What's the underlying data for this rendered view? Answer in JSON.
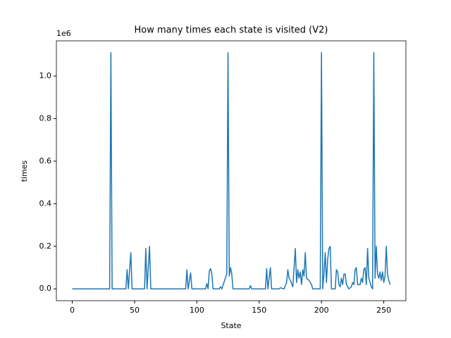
{
  "chart_data": {
    "type": "line",
    "title": "How many times each state is visited (V2)",
    "x_label": "State",
    "y_label": "times",
    "y_offset_label": "1e6",
    "color": "#1f77b4",
    "x": [
      0,
      30,
      31,
      32,
      43,
      44,
      45,
      47,
      48,
      58,
      59,
      60,
      62,
      63,
      91,
      92,
      93,
      95,
      96,
      107,
      108,
      109,
      110,
      111,
      112,
      113,
      118,
      119,
      120,
      124,
      125,
      126,
      127,
      128,
      129,
      142,
      143,
      144,
      155,
      156,
      157,
      159,
      160,
      166,
      167,
      170,
      172,
      173,
      174,
      175,
      177,
      178,
      179,
      180,
      181,
      182,
      183,
      184,
      185,
      186,
      187,
      188,
      190,
      192,
      193,
      199,
      200,
      201,
      202,
      203,
      204,
      205,
      206,
      207,
      208,
      211,
      212,
      213,
      214,
      215,
      216,
      217,
      218,
      219,
      220,
      222,
      224,
      225,
      226,
      227,
      228,
      229,
      230,
      231,
      232,
      233,
      234,
      235,
      236,
      237,
      238,
      239,
      240,
      241,
      242,
      243,
      244,
      245,
      246,
      247,
      248,
      249,
      250,
      251,
      252,
      253,
      254,
      255
    ],
    "values": [
      0,
      0,
      1.11,
      0,
      0,
      0.09,
      0,
      0.17,
      0,
      0,
      0.19,
      0,
      0.2,
      0,
      0,
      0.09,
      0,
      0.075,
      0,
      0,
      0.025,
      0,
      0.085,
      0.095,
      0.07,
      0,
      0,
      0.01,
      0,
      0.07,
      1.11,
      0.06,
      0.1,
      0.07,
      0,
      0,
      0.015,
      0,
      0,
      0.095,
      0,
      0.1,
      0,
      0,
      0.005,
      0,
      0.03,
      0.09,
      0.05,
      0.04,
      0.01,
      0.1,
      0.19,
      0.03,
      0.09,
      0.05,
      0.08,
      0.02,
      0.09,
      0.06,
      0.17,
      0.05,
      0.04,
      0.02,
      0,
      0,
      1.11,
      0,
      0.07,
      0.17,
      0.03,
      0.14,
      0.19,
      0.2,
      0,
      0,
      0.09,
      0.08,
      0.02,
      0.01,
      0.05,
      0.02,
      0.07,
      0.07,
      0.02,
      0,
      0.01,
      0.03,
      0.02,
      0.09,
      0.1,
      0.02,
      0.02,
      0.02,
      0.05,
      0.03,
      0.09,
      0.1,
      0.02,
      0.19,
      0.05,
      0.03,
      0.01,
      0,
      1.11,
      0.05,
      0.2,
      0.07,
      0.05,
      0.08,
      0.04,
      0.08,
      0.03,
      0.06,
      0.2,
      0.07,
      0.04,
      0.02
    ],
    "xlim": [
      -12.75,
      267.75
    ],
    "ylim": [
      -0.0555,
      1.1655
    ],
    "xticks": [
      0,
      50,
      100,
      150,
      200,
      250
    ],
    "yticks": [
      {
        "value": 0,
        "label": "0.0"
      },
      0.2,
      0.4,
      0.6,
      0.8,
      {
        "value": 1,
        "label": "1.0"
      }
    ]
  }
}
